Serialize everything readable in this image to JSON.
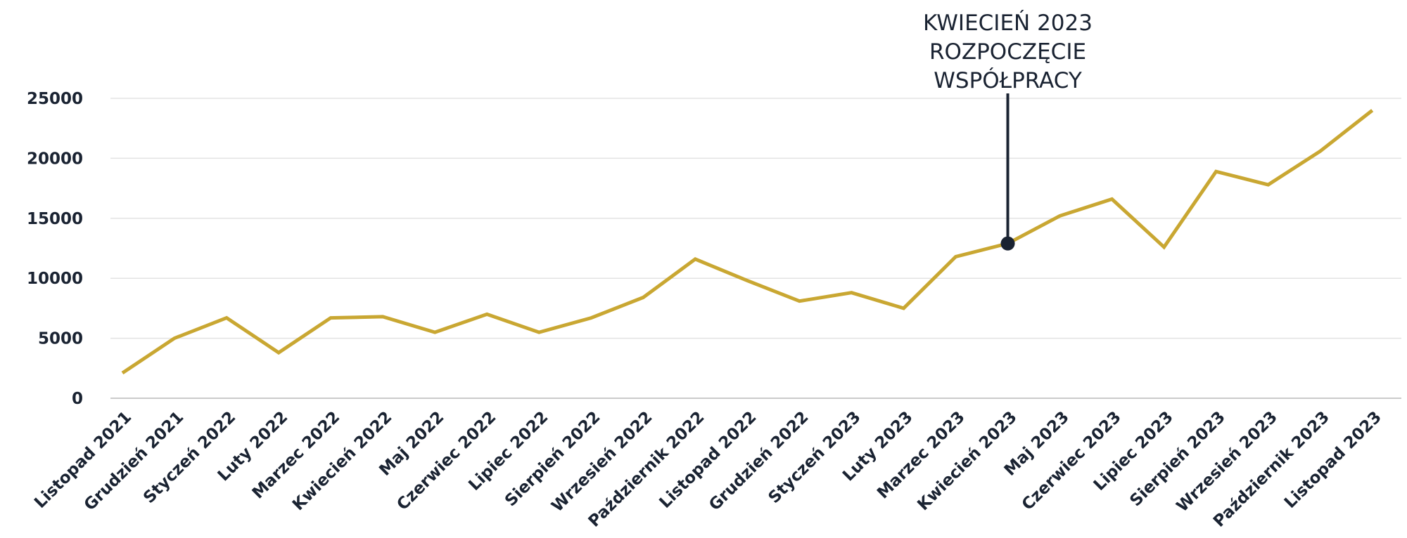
{
  "chart_data": {
    "type": "line",
    "title": "",
    "xlabel": "",
    "ylabel": "",
    "categories": [
      "Listopad 2021",
      "Grudzień 2021",
      "Styczeń 2022",
      "Luty 2022",
      "Marzec 2022",
      "Kwiecień 2022",
      "Maj 2022",
      "Czerwiec 2022",
      "Lipiec 2022",
      "Sierpień 2022",
      "Wrzesień 2022",
      "Październik 2022",
      "Listopad 2022",
      "Grudzień 2022",
      "Styczeń 2023",
      "Luty 2023",
      "Marzec 2023",
      "Kwiecień 2023",
      "Maj 2023",
      "Czerwiec 2023",
      "Lipiec 2023",
      "Sierpień 2023",
      "Wrzesień 2023",
      "Październik 2023",
      "Listopad 2023"
    ],
    "series": [
      {
        "values": [
          2100,
          5000,
          6700,
          3800,
          6700,
          6800,
          5500,
          7000,
          5500,
          6700,
          8400,
          11600,
          9800,
          8100,
          8800,
          7500,
          11800,
          12900,
          15200,
          16600,
          12600,
          18900,
          17800,
          20600,
          24000
        ],
        "color": "#c9a732"
      }
    ],
    "ylim": [
      0,
      25000
    ],
    "yticks": [
      "0",
      "5000",
      "10000",
      "15000",
      "20000",
      "25000"
    ],
    "grid": true,
    "annotation": {
      "category": "Kwiecień 2023",
      "value": 12900,
      "lines": [
        "KWIECIEŃ 2023",
        "ROZPOCZĘCIE",
        "WSPÓŁPRACY"
      ]
    },
    "colors": {
      "line": "#c9a732",
      "text": "#1a2332",
      "grid": "#e3e3e3",
      "axis": "#b8b8b8",
      "marker": "#1a2332"
    }
  }
}
